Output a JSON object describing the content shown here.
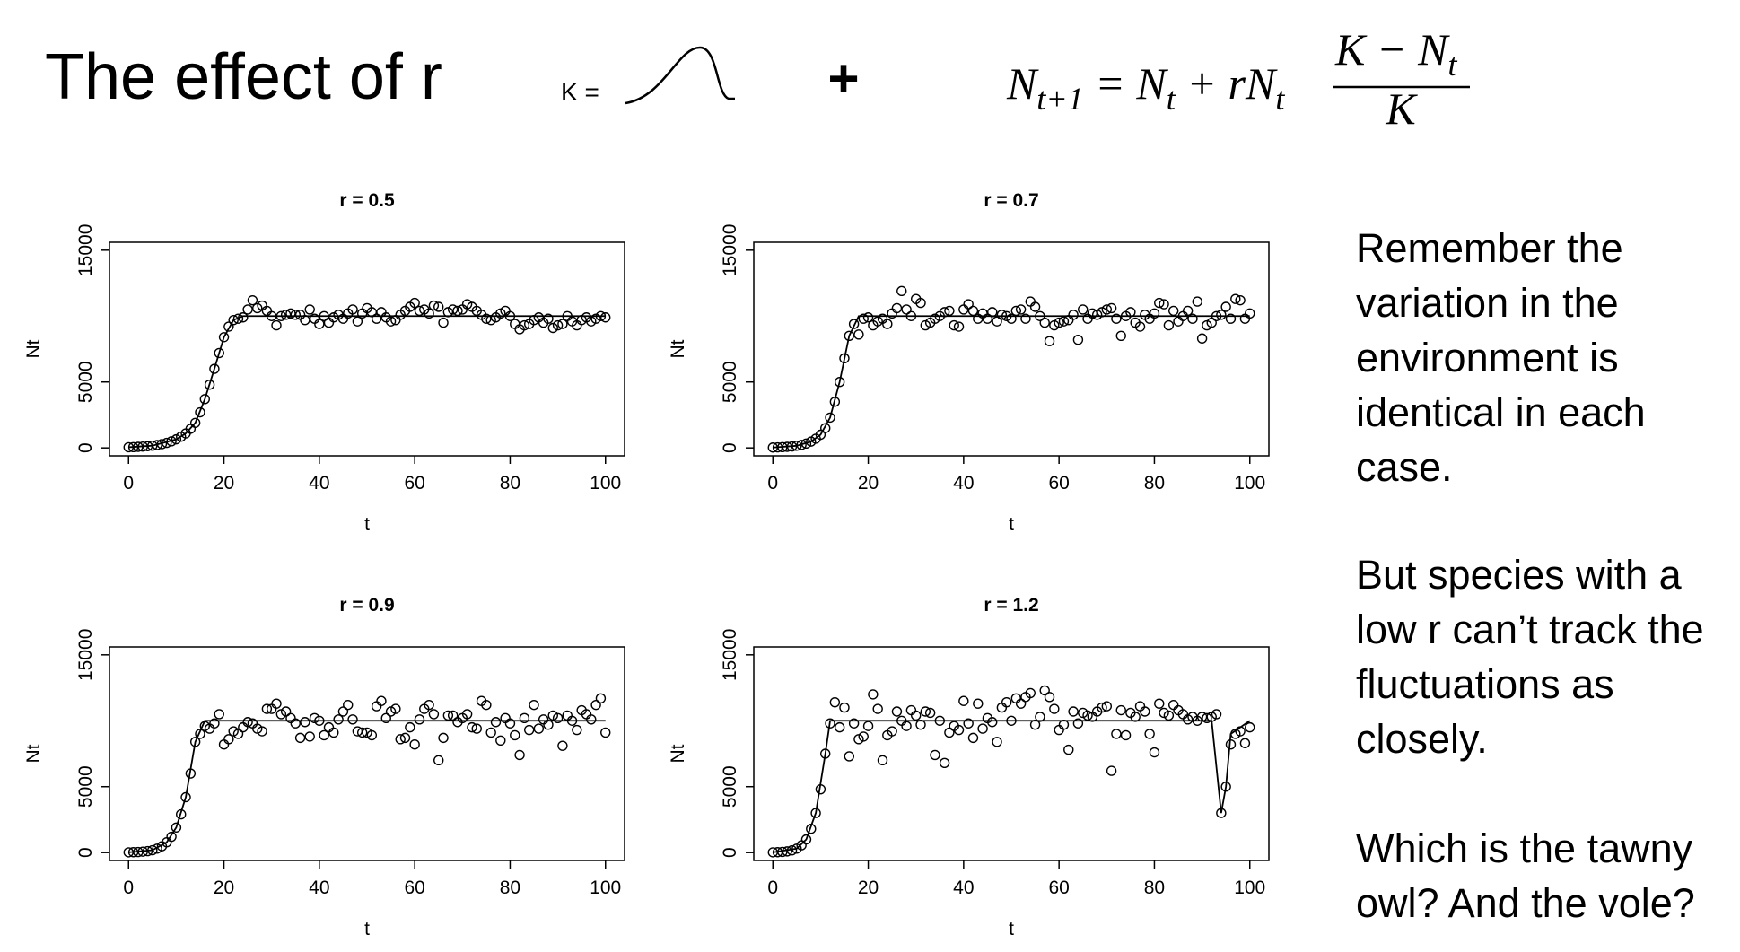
{
  "slide": {
    "title": "The effect of r",
    "k_label": "K =",
    "plus": "+",
    "formula": {
      "lhs": "N",
      "lhs_sub": "t+1",
      "eq": " = N",
      "eq_sub": "t",
      "plus": " + rN",
      "plus_sub": "t",
      "num": "K − N",
      "num_sub": "t",
      "den": "K"
    },
    "notes": [
      [
        "Remember the",
        "variation in the",
        "environment is",
        "identical in each",
        "case."
      ],
      [
        "But species with a",
        "low r can’t track the",
        "fluctuations as",
        "closely."
      ],
      [
        "Which is the tawny",
        "owl? And the vole?"
      ]
    ]
  },
  "chart_data": [
    {
      "type": "line",
      "title": "r = 0.5",
      "xlabel": "t",
      "ylabel": "Nt",
      "xlim": [
        -4,
        104
      ],
      "ylim": [
        -600,
        15600
      ],
      "xticks": [
        0,
        20,
        40,
        60,
        80,
        100
      ],
      "yticks": [
        0,
        5000,
        15000
      ],
      "series": [
        {
          "mode": "points",
          "color": "#000000",
          "x": [
            0,
            1,
            2,
            3,
            4,
            5,
            6,
            7,
            8,
            9,
            10,
            11,
            12,
            13,
            14,
            15,
            16,
            17,
            18,
            19,
            20,
            21,
            22,
            23,
            24,
            25,
            26,
            27,
            28,
            29,
            30,
            31,
            32,
            33,
            34,
            35,
            36,
            37,
            38,
            39,
            40,
            41,
            42,
            43,
            44,
            45,
            46,
            47,
            48,
            49,
            50,
            51,
            52,
            53,
            54,
            55,
            56,
            57,
            58,
            59,
            60,
            61,
            62,
            63,
            64,
            65,
            66,
            67,
            68,
            69,
            70,
            71,
            72,
            73,
            74,
            75,
            76,
            77,
            78,
            79,
            80,
            81,
            82,
            83,
            84,
            85,
            86,
            87,
            88,
            89,
            90,
            91,
            92,
            93,
            94,
            95,
            96,
            97,
            98,
            99,
            100
          ],
          "values": [
            50,
            60,
            80,
            100,
            130,
            170,
            220,
            290,
            380,
            500,
            650,
            850,
            1100,
            1450,
            1900,
            2700,
            3700,
            4800,
            6000,
            7200,
            8400,
            9200,
            9700,
            9800,
            9900,
            10500,
            11200,
            10600,
            10800,
            10400,
            10000,
            9300,
            10000,
            10100,
            10200,
            10100,
            10100,
            9700,
            10500,
            9800,
            9400,
            10000,
            9500,
            9900,
            10100,
            9800,
            10200,
            10500,
            9600,
            10200,
            10600,
            10300,
            9800,
            10300,
            9900,
            9600,
            9700,
            10100,
            10400,
            10700,
            11000,
            10400,
            10500,
            10200,
            10800,
            10700,
            9500,
            10300,
            10500,
            10400,
            10500,
            10900,
            10700,
            10400,
            10100,
            9800,
            9700,
            9900,
            10200,
            10400,
            10000,
            9400,
            9000,
            9300,
            9400,
            9700,
            9900,
            9500,
            9800,
            9100,
            9300,
            9400,
            10000,
            9600,
            9300,
            9700,
            9900,
            9600,
            9800,
            10000,
            9900
          ]
        },
        {
          "mode": "line",
          "color": "#000000",
          "x": [
            0,
            5,
            10,
            12,
            14,
            16,
            18,
            20,
            22,
            24,
            100
          ],
          "values": [
            50,
            170,
            650,
            1100,
            1900,
            3700,
            6000,
            8400,
            9700,
            10000,
            10000
          ]
        }
      ]
    },
    {
      "type": "line",
      "title": "r = 0.7",
      "xlabel": "t",
      "ylabel": "Nt",
      "xlim": [
        -4,
        104
      ],
      "ylim": [
        -600,
        15600
      ],
      "xticks": [
        0,
        20,
        40,
        60,
        80,
        100
      ],
      "yticks": [
        0,
        5000,
        15000
      ],
      "series": [
        {
          "mode": "points",
          "color": "#000000",
          "x": [
            0,
            1,
            2,
            3,
            4,
            5,
            6,
            7,
            8,
            9,
            10,
            11,
            12,
            13,
            14,
            15,
            16,
            17,
            18,
            19,
            20,
            21,
            22,
            23,
            24,
            25,
            26,
            27,
            28,
            29,
            30,
            31,
            32,
            33,
            34,
            35,
            36,
            37,
            38,
            39,
            40,
            41,
            42,
            43,
            44,
            45,
            46,
            47,
            48,
            49,
            50,
            51,
            52,
            53,
            54,
            55,
            56,
            57,
            58,
            59,
            60,
            61,
            62,
            63,
            64,
            65,
            66,
            67,
            68,
            69,
            70,
            71,
            72,
            73,
            74,
            75,
            76,
            77,
            78,
            79,
            80,
            81,
            82,
            83,
            84,
            85,
            86,
            87,
            88,
            89,
            90,
            91,
            92,
            93,
            94,
            95,
            96,
            97,
            98,
            99,
            100
          ],
          "values": [
            30,
            40,
            60,
            80,
            110,
            160,
            230,
            330,
            480,
            700,
            1000,
            1500,
            2300,
            3500,
            5000,
            6800,
            8500,
            9400,
            8600,
            9800,
            9900,
            9300,
            9600,
            9800,
            9400,
            10200,
            10600,
            11900,
            10500,
            10000,
            11300,
            11000,
            9300,
            9500,
            9800,
            10000,
            10300,
            10400,
            9300,
            9200,
            10500,
            10900,
            10400,
            9800,
            10200,
            9800,
            10300,
            9600,
            10100,
            10000,
            9800,
            10400,
            10500,
            9800,
            11100,
            10700,
            10000,
            9500,
            8100,
            9300,
            9500,
            9600,
            9700,
            10100,
            8200,
            10500,
            9800,
            10200,
            10100,
            10300,
            10500,
            10600,
            9800,
            8500,
            10000,
            10300,
            9500,
            9200,
            10100,
            9800,
            10200,
            11000,
            10900,
            9300,
            10400,
            9600,
            10000,
            10400,
            9800,
            11100,
            8300,
            9300,
            9500,
            10000,
            10100,
            10700,
            9800,
            11300,
            11200,
            9800,
            10200
          ]
        },
        {
          "mode": "line",
          "color": "#000000",
          "x": [
            0,
            5,
            8,
            10,
            12,
            14,
            16,
            18,
            100
          ],
          "values": [
            30,
            160,
            480,
            1000,
            2300,
            5000,
            8500,
            10000,
            10000
          ]
        }
      ]
    },
    {
      "type": "line",
      "title": "r = 0.9",
      "xlabel": "t",
      "ylabel": "Nt",
      "xlim": [
        -4,
        104
      ],
      "ylim": [
        -600,
        15600
      ],
      "xticks": [
        0,
        20,
        40,
        60,
        80,
        100
      ],
      "yticks": [
        0,
        5000,
        15000
      ],
      "series": [
        {
          "mode": "points",
          "color": "#000000",
          "x": [
            0,
            1,
            2,
            3,
            4,
            5,
            6,
            7,
            8,
            9,
            10,
            11,
            12,
            13,
            14,
            15,
            16,
            17,
            18,
            19,
            20,
            21,
            22,
            23,
            24,
            25,
            26,
            27,
            28,
            29,
            30,
            31,
            32,
            33,
            34,
            35,
            36,
            37,
            38,
            39,
            40,
            41,
            42,
            43,
            44,
            45,
            46,
            47,
            48,
            49,
            50,
            51,
            52,
            53,
            54,
            55,
            56,
            57,
            58,
            59,
            60,
            61,
            62,
            63,
            64,
            65,
            66,
            67,
            68,
            69,
            70,
            71,
            72,
            73,
            74,
            75,
            76,
            77,
            78,
            79,
            80,
            81,
            82,
            83,
            84,
            85,
            86,
            87,
            88,
            89,
            90,
            91,
            92,
            93,
            94,
            95,
            96,
            97,
            98,
            99,
            100
          ],
          "values": [
            20,
            30,
            40,
            70,
            110,
            180,
            300,
            480,
            780,
            1200,
            1900,
            2900,
            4200,
            6000,
            8400,
            9000,
            9600,
            9400,
            9800,
            10500,
            8200,
            8600,
            9200,
            9000,
            9500,
            9900,
            9800,
            9400,
            9200,
            10900,
            10900,
            11300,
            10500,
            10700,
            10200,
            9800,
            8700,
            9900,
            8800,
            10200,
            10000,
            8900,
            9500,
            9100,
            10100,
            10700,
            11200,
            10100,
            9200,
            9100,
            9100,
            8900,
            11100,
            11500,
            10200,
            10700,
            10900,
            8600,
            8700,
            9500,
            8200,
            10100,
            10900,
            11200,
            10500,
            7000,
            8700,
            10400,
            10400,
            9900,
            10200,
            10500,
            9500,
            9400,
            11500,
            11200,
            9100,
            9900,
            8500,
            10200,
            9800,
            8900,
            7400,
            10200,
            9300,
            11200,
            9400,
            10100,
            9700,
            10400,
            10200,
            8100,
            10400,
            10000,
            9300,
            10800,
            10500,
            10100,
            11200,
            11700,
            9100
          ]
        },
        {
          "mode": "line",
          "color": "#000000",
          "x": [
            0,
            5,
            8,
            10,
            12,
            14,
            16,
            100
          ],
          "values": [
            20,
            180,
            780,
            1900,
            4200,
            8400,
            10000,
            10000
          ]
        }
      ]
    },
    {
      "type": "line",
      "title": "r = 1.2",
      "xlabel": "t",
      "ylabel": "Nt",
      "xlim": [
        -4,
        104
      ],
      "ylim": [
        -600,
        15600
      ],
      "xticks": [
        0,
        20,
        40,
        60,
        80,
        100
      ],
      "yticks": [
        0,
        5000,
        15000
      ],
      "series": [
        {
          "mode": "points",
          "color": "#000000",
          "x": [
            0,
            1,
            2,
            3,
            4,
            5,
            6,
            7,
            8,
            9,
            10,
            11,
            12,
            13,
            14,
            15,
            16,
            17,
            18,
            19,
            20,
            21,
            22,
            23,
            24,
            25,
            26,
            27,
            28,
            29,
            30,
            31,
            32,
            33,
            34,
            35,
            36,
            37,
            38,
            39,
            40,
            41,
            42,
            43,
            44,
            45,
            46,
            47,
            48,
            49,
            50,
            51,
            52,
            53,
            54,
            55,
            56,
            57,
            58,
            59,
            60,
            61,
            62,
            63,
            64,
            65,
            66,
            67,
            68,
            69,
            70,
            71,
            72,
            73,
            74,
            75,
            76,
            77,
            78,
            79,
            80,
            81,
            82,
            83,
            84,
            85,
            86,
            87,
            88,
            89,
            90,
            91,
            92,
            93,
            94,
            95,
            96,
            97,
            98,
            99,
            100
          ],
          "values": [
            20,
            30,
            50,
            90,
            170,
            300,
            550,
            1000,
            1800,
            3000,
            4800,
            7500,
            9800,
            11400,
            9500,
            11000,
            7300,
            9800,
            8600,
            8800,
            9600,
            12000,
            10900,
            7000,
            8900,
            9200,
            10700,
            10000,
            9600,
            10800,
            10400,
            9700,
            10700,
            10600,
            7400,
            10000,
            6800,
            9100,
            9600,
            9300,
            11500,
            9800,
            8700,
            11300,
            9400,
            10200,
            9900,
            8400,
            11000,
            11400,
            10000,
            11700,
            11300,
            11800,
            12100,
            9700,
            10300,
            12300,
            11800,
            10900,
            9300,
            9700,
            7800,
            10700,
            9800,
            10600,
            10400,
            10300,
            10700,
            11000,
            11100,
            6200,
            9000,
            10800,
            8900,
            10600,
            10300,
            11100,
            10700,
            9000,
            7600,
            11300,
            10600,
            10400,
            11200,
            10800,
            10500,
            10100,
            10300,
            10000,
            10300,
            10200,
            10300,
            10500,
            3000,
            5000,
            8200,
            9000,
            9200,
            8300,
            9500
          ]
        },
        {
          "mode": "line",
          "color": "#000000",
          "x": [
            0,
            5,
            7,
            9,
            11,
            12,
            92,
            94,
            95,
            96,
            100
          ],
          "values": [
            20,
            300,
            1000,
            3000,
            7500,
            10000,
            10000,
            3000,
            5000,
            9000,
            10000
          ]
        }
      ]
    }
  ]
}
